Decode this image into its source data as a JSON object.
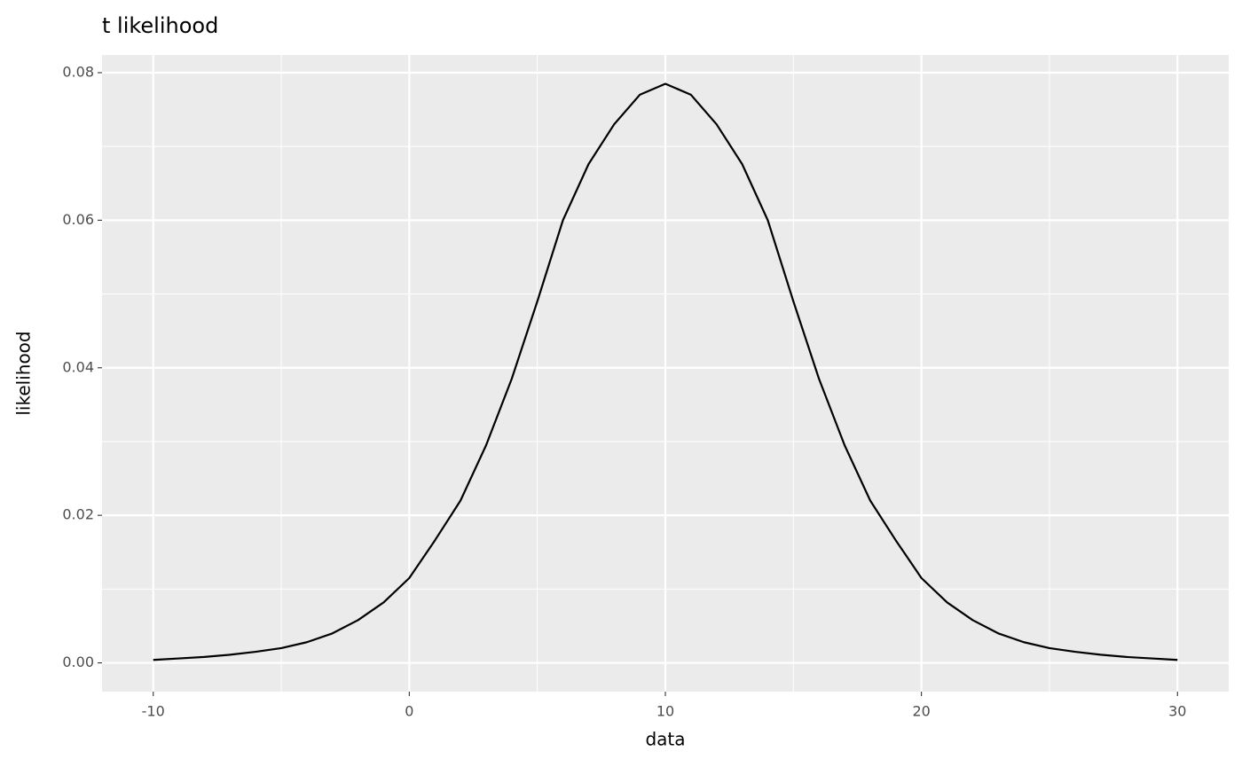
{
  "chart_data": {
    "type": "line",
    "title": "t likelihood",
    "x_label": "data",
    "y_label": "likelihood",
    "x": [
      -10,
      -9,
      -8,
      -7,
      -6,
      -5,
      -4,
      -3,
      -2,
      -1,
      0,
      1,
      2,
      3,
      4,
      5,
      6,
      7,
      8,
      9,
      10,
      11,
      12,
      13,
      14,
      15,
      16,
      17,
      18,
      19,
      20,
      21,
      22,
      23,
      24,
      25,
      26,
      27,
      28,
      29,
      30
    ],
    "series": [
      {
        "name": "likelihood",
        "color": "#000000",
        "values": [
          0.0004,
          0.0006,
          0.0008,
          0.0011,
          0.0015,
          0.002,
          0.0028,
          0.004,
          0.0058,
          0.0082,
          0.0115,
          0.0166,
          0.022,
          0.0295,
          0.0385,
          0.049,
          0.06,
          0.0676,
          0.073,
          0.077,
          0.0785,
          0.077,
          0.073,
          0.0676,
          0.06,
          0.049,
          0.0385,
          0.0295,
          0.022,
          0.0166,
          0.0115,
          0.0082,
          0.0058,
          0.004,
          0.0028,
          0.002,
          0.0015,
          0.0011,
          0.0008,
          0.0006,
          0.0004
        ]
      }
    ],
    "xlim": [
      -12,
      32
    ],
    "xticks": [
      -10,
      0,
      10,
      20,
      30
    ],
    "ylim": [
      -0.0039,
      0.0824
    ],
    "yticks": [
      {
        "value": 0,
        "label": "0.00"
      },
      {
        "value": 0.02,
        "label": "0.02"
      },
      {
        "value": 0.04,
        "label": "0.04"
      },
      {
        "value": 0.06,
        "label": "0.06"
      },
      {
        "value": 0.08,
        "label": "0.08"
      }
    ],
    "grid": true,
    "panel_color": "#ebebeb",
    "grid_color": "#ffffff"
  }
}
